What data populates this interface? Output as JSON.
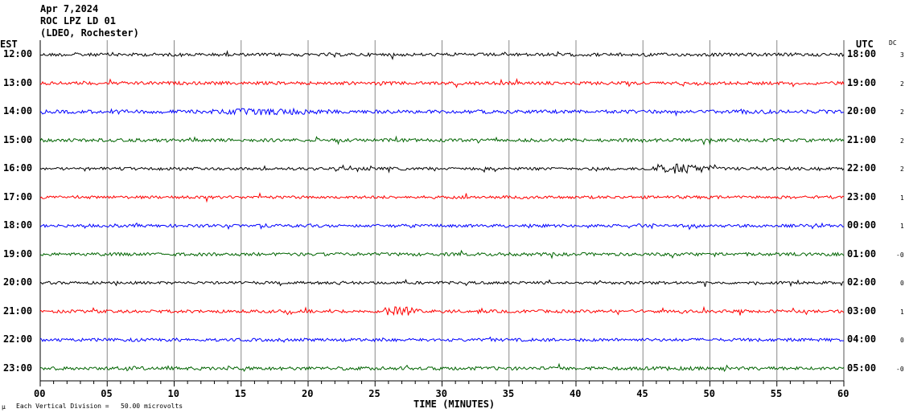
{
  "header": {
    "date": "Apr 7,2024",
    "station": "ROC LPZ LD 01",
    "network": "(LDEO, Rochester)"
  },
  "left_axis_title": "EST",
  "right_axis_title": "UTC",
  "dc_title": "DC",
  "footer": {
    "scale_icon": "μ",
    "scale_text": "Each Vertical Division =   50.00 microvolts"
  },
  "chart_data": {
    "type": "line",
    "title": "ROC LPZ LD 01 helicorder",
    "xlabel": "TIME (MINUTES)",
    "xlim": [
      0,
      60
    ],
    "x_ticks": [
      "00",
      "05",
      "10",
      "15",
      "20",
      "25",
      "30",
      "35",
      "40",
      "45",
      "50",
      "55",
      "60"
    ],
    "rows": [
      {
        "est": "12:00",
        "utc": "18:00",
        "dc": "3",
        "color": "#000000",
        "noise": 2.0,
        "bursts": []
      },
      {
        "est": "13:00",
        "utc": "19:00",
        "dc": "2",
        "color": "#ff0000",
        "noise": 2.0,
        "bursts": []
      },
      {
        "est": "14:00",
        "utc": "20:00",
        "dc": "2",
        "color": "#0000ff",
        "noise": 2.2,
        "bursts": [
          [
            12,
            22,
            2.0
          ]
        ]
      },
      {
        "est": "15:00",
        "utc": "21:00",
        "dc": "2",
        "color": "#006400",
        "noise": 2.0,
        "bursts": []
      },
      {
        "est": "16:00",
        "utc": "22:00",
        "dc": "2",
        "color": "#000000",
        "noise": 1.8,
        "bursts": [
          [
            45,
            51,
            4.5
          ]
        ]
      },
      {
        "est": "17:00",
        "utc": "23:00",
        "dc": "1",
        "color": "#ff0000",
        "noise": 1.8,
        "bursts": []
      },
      {
        "est": "18:00",
        "utc": "00:00",
        "dc": "1",
        "color": "#0000ff",
        "noise": 1.8,
        "bursts": []
      },
      {
        "est": "19:00",
        "utc": "01:00",
        "dc": "-0",
        "color": "#006400",
        "noise": 2.0,
        "bursts": []
      },
      {
        "est": "20:00",
        "utc": "02:00",
        "dc": "0",
        "color": "#000000",
        "noise": 1.7,
        "bursts": []
      },
      {
        "est": "21:00",
        "utc": "03:00",
        "dc": "1",
        "color": "#ff0000",
        "noise": 1.9,
        "bursts": [
          [
            25,
            28.5,
            4.0
          ]
        ]
      },
      {
        "est": "22:00",
        "utc": "04:00",
        "dc": "0",
        "color": "#0000ff",
        "noise": 1.9,
        "bursts": []
      },
      {
        "est": "23:00",
        "utc": "05:00",
        "dc": "-0",
        "color": "#006400",
        "noise": 2.1,
        "bursts": []
      }
    ]
  }
}
